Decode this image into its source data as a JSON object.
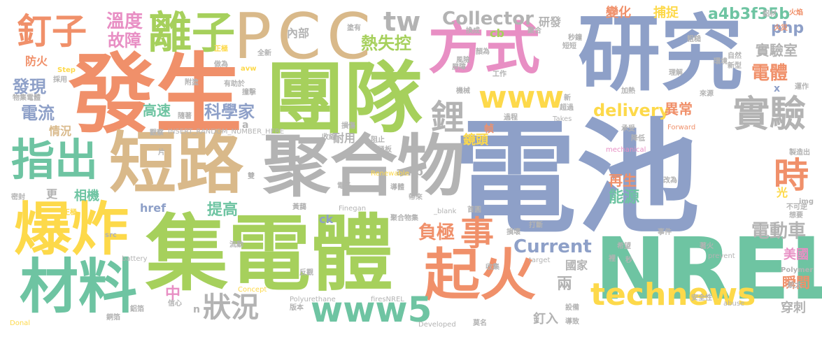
{
  "palette": {
    "blue": "#8ea0c8",
    "green": "#a6d05c",
    "tan": "#d9b98a",
    "gray": "#b3b3b3",
    "orange": "#f0906a",
    "yellow": "#fdd94a",
    "pink": "#e88fc4",
    "teal": "#6ec4a2"
  },
  "words": [
    "電池",
    "聚合物",
    "集電體",
    "團隊",
    "發生",
    "研究",
    "NREL",
    "短路",
    "爆炸",
    "方式",
    "PCC",
    "起火",
    "材料",
    "指出",
    "離子",
    "實驗",
    "釘子",
    "technews",
    "www5",
    "鋰",
    "www",
    "狀況",
    "時",
    "事",
    "tw",
    "Collector",
    "Current",
    "delivery",
    "溫度",
    "故障",
    "熱失控",
    "發現",
    "電流",
    "科學家",
    "電體",
    "實驗室",
    "php",
    "a4b3f35b",
    "電動車",
    "負極",
    "高速",
    "異常",
    "能源",
    "再生",
    "提高",
    "中",
    "兩",
    "瞬間",
    "美國",
    "國家",
    "穿刺",
    "釘入",
    "耐用",
    "鏡頭",
    "捕捉",
    "變化",
    "cb",
    "研發",
    "內部",
    "防火",
    "情況",
    "相機",
    "更",
    "href",
    "amp",
    "ck",
    "帧",
    "光",
    "n",
    "a",
    "x",
    "全新",
    "正極",
    "avw",
    "Step",
    "採用",
    "物集電體",
    "附塗",
    "有助於",
    "撞擊",
    "做為",
    "INSERT_RANDOM_NUMBER_HERE",
    "觀察",
    "隨著",
    "收縮",
    "阻止",
    "極板",
    "損傷",
    "Renewable",
    "電子",
    "導體",
    "帶來",
    "黃藹",
    "聚合物集",
    "Finegan",
    "_blank",
    "首圓",
    "打斷",
    "希望",
    "事件",
    "著火",
    "prevent",
    "Takes",
    "Forward",
    "mechanical",
    "承受",
    "降低",
    "來源",
    "理解",
    "加熱",
    "運作",
    "img",
    "想要",
    "不可逆",
    "Polymer",
    "航太",
    "安全性",
    "abuse",
    "設備",
    "導致",
    "莫名",
    "Developed",
    "firesNREL",
    "Polyurethane",
    "版本",
    "反觀",
    "收集",
    "損壞",
    "target",
    "battery",
    "Concept",
    "Donal",
    "鋁箔",
    "銅箔",
    "信心",
    "雙",
    "流動",
    "片",
    "密封",
    "鋁材",
    "火焰",
    "火災",
    "換成",
    "顏為",
    "聚合",
    "塗有",
    "風險",
    "屏障",
    "工作",
    "機械",
    "新",
    "超過",
    "過程",
    "新型",
    "自然",
    "環境",
    "粗糙",
    "短短",
    "秒鐘",
    "製造出",
    "正極",
    "裡",
    "秒",
    "src",
    "改為"
  ]
}
